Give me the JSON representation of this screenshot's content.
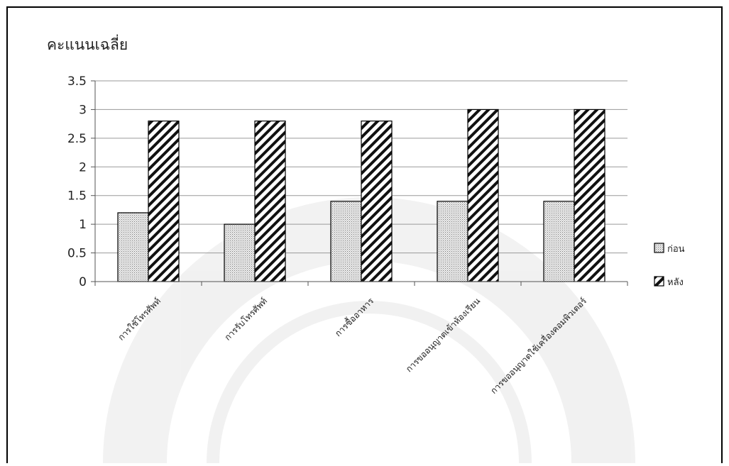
{
  "chart_data": {
    "type": "bar",
    "ylabel": "คะแนนเฉลี่ย",
    "xlabel": "",
    "categories": [
      "การใช้โทรศัพท์",
      "การรับโทรศัพท์",
      "การซื้ออาหาร",
      "การขออนุญาตเข้าห้องเรียน",
      "การขออนุญาตใช้เครื่องคอมพิวเตอร์"
    ],
    "series": [
      {
        "name": "ก่อน",
        "values": [
          1.2,
          1.0,
          1.4,
          1.4,
          1.4
        ]
      },
      {
        "name": "หลัง",
        "values": [
          2.8,
          2.8,
          2.8,
          3.0,
          3.0
        ]
      }
    ],
    "ylim": [
      0,
      3.5
    ],
    "yticks": [
      "0",
      "0.5",
      "1",
      "1.5",
      "2",
      "2.5",
      "3",
      "3.5"
    ],
    "grid": true,
    "legend_position": "right"
  }
}
